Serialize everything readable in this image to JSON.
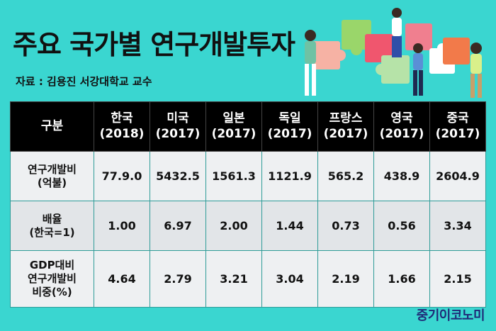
{
  "title": "주요 국가별 연구개발투자",
  "source": "자료 : 김용진 서강대학교 교수",
  "brand": "중기이코노미",
  "colors": {
    "background": "#3ad6d0",
    "header": "#000000",
    "brand": "#1f2a78"
  },
  "illustration": "people-assembling-puzzle-pieces",
  "table": {
    "corner": "구분",
    "columns": [
      {
        "country": "한국",
        "year": "(2018)"
      },
      {
        "country": "미국",
        "year": "(2017)"
      },
      {
        "country": "일본",
        "year": "(2017)"
      },
      {
        "country": "독일",
        "year": "(2017)"
      },
      {
        "country": "프랑스",
        "year": "(2017)"
      },
      {
        "country": "영국",
        "year": "(2017)"
      },
      {
        "country": "중국",
        "year": "(2017)"
      }
    ],
    "rows": [
      {
        "label": [
          "연구개발비",
          "(억불)"
        ],
        "values": [
          "77.9.0",
          "5432.5",
          "1561.3",
          "1121.9",
          "565.2",
          "438.9",
          "2604.9"
        ]
      },
      {
        "label": [
          "배율",
          "(한국=1)"
        ],
        "values": [
          "1.00",
          "6.97",
          "2.00",
          "1.44",
          "0.73",
          "0.56",
          "3.34"
        ]
      },
      {
        "label": [
          "GDP대비",
          "연구개발비",
          "비중(%)"
        ],
        "values": [
          "4.64",
          "2.79",
          "3.21",
          "3.04",
          "2.19",
          "1.66",
          "2.15"
        ]
      }
    ]
  }
}
